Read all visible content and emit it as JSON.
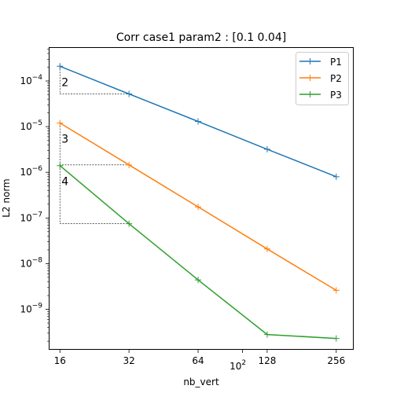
{
  "chart_data": {
    "type": "line",
    "title": "Corr case1 param2 : [0.1  0.04]",
    "xlabel": "nb_vert",
    "ylabel": "L2 norm",
    "x_scale": "log2",
    "y_scale": "log10",
    "xlim": [
      14.3,
      305
    ],
    "ylim": [
      1.3e-10,
      0.00055
    ],
    "grid": false,
    "legend_position": "top-right",
    "x": [
      16,
      32,
      64,
      128,
      256
    ],
    "x_ticks": [
      {
        "value": 16,
        "label": "16"
      },
      {
        "value": 32,
        "label": "32"
      },
      {
        "value": 64,
        "label": "64"
      },
      {
        "value": 128,
        "label": "128"
      },
      {
        "value": 256,
        "label": "256"
      }
    ],
    "x_extra_tick": {
      "value": 100,
      "base": "10",
      "exp": "2"
    },
    "y_ticks": [
      {
        "value": 1e-09,
        "base": "10",
        "exp": "−9"
      },
      {
        "value": 1e-08,
        "base": "10",
        "exp": "−8"
      },
      {
        "value": 1e-07,
        "base": "10",
        "exp": "−7"
      },
      {
        "value": 1e-06,
        "base": "10",
        "exp": "−6"
      },
      {
        "value": 1e-05,
        "base": "10",
        "exp": "−5"
      },
      {
        "value": 0.0001,
        "base": "10",
        "exp": "−4"
      }
    ],
    "series": [
      {
        "name": "P1",
        "color": "#1f77b4",
        "values": [
          0.00021,
          5.2e-05,
          1.3e-05,
          3.2e-06,
          8e-07
        ]
      },
      {
        "name": "P2",
        "color": "#ff7f0e",
        "values": [
          1.2e-05,
          1.45e-06,
          1.75e-07,
          2.1e-08,
          2.6e-09
        ]
      },
      {
        "name": "P3",
        "color": "#2ca02c",
        "values": [
          1.4e-06,
          7.5e-08,
          4.4e-09,
          2.8e-10,
          2.3e-10
        ]
      }
    ],
    "slope_triangles": [
      {
        "label": "2",
        "x0": 16,
        "x1": 32,
        "y_top": 0.00021,
        "y_bottom": 5.2e-05
      },
      {
        "label": "3",
        "x0": 16,
        "x1": 32,
        "y_top": 1.2e-05,
        "y_bottom": 1.45e-06
      },
      {
        "label": "4",
        "x0": 16,
        "x1": 32,
        "y_top": 1.4e-06,
        "y_bottom": 7.5e-08
      }
    ]
  }
}
